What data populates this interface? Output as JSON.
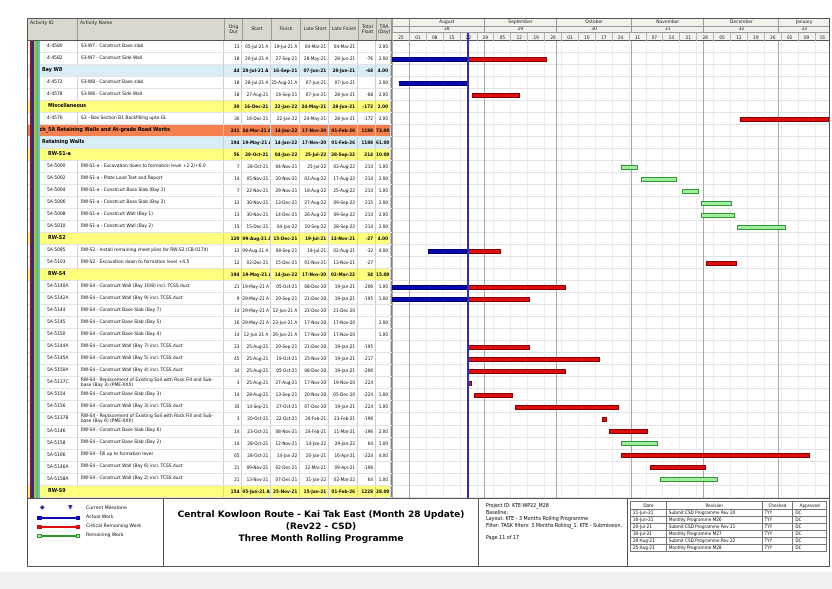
{
  "table": {
    "headers": [
      "Activity ID",
      "Activity Name",
      "Orig Dur",
      "Start",
      "Finish",
      "Late Start",
      "Late Finish",
      "Total Float",
      "TRA (Day)"
    ]
  },
  "chart_data": {
    "type": "gantt",
    "timeline": {
      "range_start": "25-Jul-21",
      "range_end": "22-Jan-22",
      "total_days": 181,
      "data_date": "25-Aug-21",
      "data_date_day": 31,
      "months": [
        {
          "label": "",
          "num": "",
          "d0": 0,
          "d1": 7
        },
        {
          "label": "August",
          "num": "28",
          "d0": 7,
          "d1": 38
        },
        {
          "label": "September",
          "num": "29",
          "d0": 38,
          "d1": 68
        },
        {
          "label": "October",
          "num": "30",
          "d0": 68,
          "d1": 99
        },
        {
          "label": "November",
          "num": "31",
          "d0": 99,
          "d1": 129
        },
        {
          "label": "December",
          "num": "32",
          "d0": 129,
          "d1": 160
        },
        {
          "label": "January",
          "num": "33",
          "d0": 160,
          "d1": 181
        }
      ],
      "week_ticks": [
        "25",
        "01",
        "08",
        "15",
        "22",
        "29",
        "05",
        "12",
        "19",
        "26",
        "03",
        "10",
        "17",
        "24",
        "31",
        "07",
        "14",
        "21",
        "28",
        "05",
        "12",
        "19",
        "26",
        "02",
        "09",
        "16"
      ]
    },
    "tasks": [
      {
        "id": "4-4580",
        "band": null,
        "name": "S3-W7 - Construct Base slab",
        "dur": "13",
        "start": "05-Jul-21 A",
        "finish": "19-Jul-21 A",
        "ls": "04-Mar-21",
        "lf": "04-Mar-21",
        "tf": "",
        "tra": "2.00",
        "segs": []
      },
      {
        "id": "4-4582",
        "band": null,
        "name": "S3-W7 - Construct Side Wall",
        "dur": "18",
        "start": "20-Jul-21 A",
        "finish": "27-Sep-21",
        "ls": "28-May-21",
        "lf": "28-Jun-21",
        "tf": "-76",
        "tra": "2.00",
        "segs": [
          [
            "a",
            0,
            31
          ],
          [
            "c",
            31,
            64
          ]
        ]
      },
      {
        "id": "",
        "band": "cyan",
        "name": "Bay W8",
        "dur": "44",
        "start": "28-Jul-21 A",
        "finish": "16-Sep-21",
        "ls": "07-Jun-21",
        "lf": "28-Jun-21",
        "tf": "-68",
        "tra": "4.00",
        "segs": []
      },
      {
        "id": "4-4572",
        "band": null,
        "name": "S3-W8 - Construct Base slab",
        "dur": "18",
        "start": "28-Jul-21 A",
        "finish": "25-Aug-21 A",
        "ls": "07-Jun-21",
        "lf": "07-Jun-21",
        "tf": "",
        "tra": "2.00",
        "segs": [
          [
            "a",
            3,
            31
          ]
        ]
      },
      {
        "id": "4-4578",
        "band": null,
        "name": "S3-W8 - Construct Side Wall",
        "dur": "18",
        "start": "27-Aug-21",
        "finish": "16-Sep-21",
        "ls": "07-Jun-21",
        "lf": "28-Jun-21",
        "tf": "-68",
        "tra": "2.00",
        "segs": [
          [
            "c",
            33,
            53
          ]
        ]
      },
      {
        "id": "",
        "band": "yellow",
        "name": "Miscellaneous",
        "dur": "30",
        "start": "16-Dec-21",
        "finish": "22-Jan-22",
        "ls": "24-May-21",
        "lf": "28-Jun-21",
        "tf": "-172",
        "tra": "2.00",
        "segs": []
      },
      {
        "id": "4-4576",
        "band": null,
        "name": "S3 - Box Section B1 Backfilling upto GL",
        "dur": "30",
        "start": "16-Dec-21",
        "finish": "22-Jan-22",
        "ls": "24-May-21",
        "lf": "28-Jun-21",
        "tf": "-172",
        "tra": "2.00",
        "segs": [
          [
            "c",
            144,
            181
          ]
        ]
      },
      {
        "id": "",
        "band": "orange",
        "name": "Sch_5A Retaining Walls and At-grade Road Works",
        "dur": "241",
        "start": "24-Mar-21 A",
        "finish": "14-Jan-22",
        "ls": "17-Nov-20",
        "lf": "01-Feb-26",
        "tf": "1188",
        "tra": "73.00",
        "segs": []
      },
      {
        "id": "",
        "band": "cyan",
        "name": "Retaining Walls",
        "dur": "194",
        "start": "19-May-21 A",
        "finish": "14-Jan-22",
        "ls": "17-Nov-20",
        "lf": "01-Feb-26",
        "tf": "1188",
        "tra": "61.00",
        "segs": []
      },
      {
        "id": "",
        "band": "yellow",
        "name": "RW-S1-a",
        "dur": "56",
        "start": "28-Oct-21",
        "finish": "04-Jan-22",
        "ls": "25-Jul-22",
        "lf": "28-Sep-22",
        "tf": "214",
        "tra": "10.00",
        "segs": []
      },
      {
        "id": "5A-5000",
        "band": null,
        "name": "RW-S1-a - Excavation down to formation level +2.2/+6.0",
        "dur": "7",
        "start": "28-Oct-21",
        "finish": "04-Nov-21",
        "ls": "25-Jul-22",
        "lf": "03-Aug-22",
        "tf": "214",
        "tra": "1.00",
        "segs": [
          [
            "r",
            95,
            102
          ]
        ]
      },
      {
        "id": "5A-5002",
        "band": null,
        "name": "RW-S1-a - Plate Load Test and Report",
        "dur": "14",
        "start": "05-Nov-21",
        "finish": "20-Nov-21",
        "ls": "02-Aug-22",
        "lf": "17-Aug-22",
        "tf": "214",
        "tra": "2.00",
        "segs": [
          [
            "r",
            103,
            118
          ]
        ]
      },
      {
        "id": "5A-5004",
        "band": null,
        "name": "RW-S1-a - Construct Base Slab (Bay 1)",
        "dur": "7",
        "start": "22-Nov-21",
        "finish": "29-Nov-21",
        "ls": "18-Aug-22",
        "lf": "25-Aug-22",
        "tf": "214",
        "tra": "1.00",
        "segs": [
          [
            "r",
            120,
            127
          ]
        ]
      },
      {
        "id": "5A-5006",
        "band": null,
        "name": "RW-S1-a - Construct Base Slab (Bay 2)",
        "dur": "12",
        "start": "30-Nov-21",
        "finish": "13-Dec-21",
        "ls": "27-Aug-22",
        "lf": "09-Sep-22",
        "tf": "215",
        "tra": "2.00",
        "segs": [
          [
            "r",
            128,
            141
          ]
        ]
      },
      {
        "id": "5A-5008",
        "band": null,
        "name": "RW-S1-a - Construct Wall (Bay 1)",
        "dur": "13",
        "start": "30-Nov-21",
        "finish": "14-Dec-21",
        "ls": "26-Aug-22",
        "lf": "09-Sep-22",
        "tf": "214",
        "tra": "2.00",
        "segs": [
          [
            "r",
            128,
            142
          ]
        ]
      },
      {
        "id": "5A-5010",
        "band": null,
        "name": "RW-S1-a - Construct Wall (Bay 2)",
        "dur": "15",
        "start": "15-Dec-21",
        "finish": "04-Jan-22",
        "ls": "10-Sep-22",
        "lf": "28-Sep-22",
        "tf": "214",
        "tra": "2.00",
        "segs": [
          [
            "r",
            143,
            163
          ]
        ]
      },
      {
        "id": "",
        "band": "yellow",
        "name": "RW-S2",
        "dur": "120",
        "start": "09-Aug-21 A",
        "finish": "15-Dec-21",
        "ls": "19-Jul-21",
        "lf": "13-Nov-21",
        "tf": "-27",
        "tra": "4.00",
        "segs": []
      },
      {
        "id": "5A-5095",
        "band": null,
        "name": "RW-S2 - Install remaining sheet piles for RW-S2 (CB-0174)",
        "dur": "12",
        "start": "09-Aug-21 A",
        "finish": "08-Sep-21",
        "ls": "19-Jul-21",
        "lf": "02-Aug-21",
        "tf": "-32",
        "tra": "4.00",
        "segs": [
          [
            "a",
            15,
            31
          ],
          [
            "c",
            31,
            45
          ]
        ]
      },
      {
        "id": "5A-5103",
        "band": null,
        "name": "RW-S2 - Excavation down to formation level +4.5",
        "dur": "12",
        "start": "02-Dec-21",
        "finish": "15-Dec-21",
        "ls": "01-Nov-21",
        "lf": "13-Nov-21",
        "tf": "-27",
        "tra": "",
        "segs": [
          [
            "c",
            130,
            143
          ]
        ]
      },
      {
        "id": "",
        "band": "yellow",
        "name": "RW-S4",
        "dur": "194",
        "start": "19-May-21 A",
        "finish": "14-Jan-22",
        "ls": "17-Nov-20",
        "lf": "02-Mar-22",
        "tf": "34",
        "tra": "15.00",
        "segs": []
      },
      {
        "id": "5A-5140A",
        "band": null,
        "name": "RW-S4 - Construct Wall (Bay 10/8) incl. TCSS duct",
        "dur": "21",
        "start": "19-May-21 A",
        "finish": "05-Oct-21",
        "ls": "08-Dec-20",
        "lf": "19-Jan-21",
        "tf": "-206",
        "tra": "1.00",
        "segs": [
          [
            "a",
            0,
            31
          ],
          [
            "c",
            31,
            72
          ]
        ]
      },
      {
        "id": "5A-5142A",
        "band": null,
        "name": "RW-S4 - Construct Wall (Bay 9) incl. TCSS duct",
        "dur": "9",
        "start": "29-May-21 A",
        "finish": "20-Sep-21",
        "ls": "21-Dec-20",
        "lf": "19-Jan-21",
        "tf": "-195",
        "tra": "1.00",
        "segs": [
          [
            "a",
            0,
            31
          ],
          [
            "c",
            31,
            57
          ]
        ]
      },
      {
        "id": "5A-5144",
        "band": null,
        "name": "RW-S4 - Construct Base Slab (Bay 7)",
        "dur": "14",
        "start": "29-May-21 A",
        "finish": "12-Jun-21 A",
        "ls": "21-Dec-20",
        "lf": "21-Dec-20",
        "tf": "",
        "tra": "",
        "segs": []
      },
      {
        "id": "5A-5145",
        "band": null,
        "name": "RW-S4 - Construct Base Slab (Bay 5)",
        "dur": "16",
        "start": "29-May-21 A",
        "finish": "23-Jun-21 A",
        "ls": "17-Nov-20",
        "lf": "17-Nov-20",
        "tf": "",
        "tra": "2.00",
        "segs": []
      },
      {
        "id": "5A-5150",
        "band": null,
        "name": "RW-S4 - Construct Base Slab (Bay 4)",
        "dur": "14",
        "start": "12-Jun-21 A",
        "finish": "26-Jun-21 A",
        "ls": "17-Nov-20",
        "lf": "17-Nov-20",
        "tf": "",
        "tra": "1.00",
        "segs": []
      },
      {
        "id": "5A-5144A",
        "band": null,
        "name": "RW-S4 - Construct Wall (Bay 7) incl. TCSS duct",
        "dur": "23",
        "start": "25-Aug-21",
        "finish": "20-Sep-21",
        "ls": "21-Dec-20",
        "lf": "19-Jan-21",
        "tf": "-195",
        "tra": "",
        "segs": [
          [
            "c",
            31,
            57
          ]
        ]
      },
      {
        "id": "5A-5145A",
        "band": null,
        "name": "RW-S4 - Construct Wall (Bay 5) incl. TCSS duct",
        "dur": "45",
        "start": "25-Aug-21",
        "finish": "19-Oct-21",
        "ls": "25-Nov-20",
        "lf": "19-Jan-21",
        "tf": "-217",
        "tra": "",
        "segs": [
          [
            "c",
            31,
            86
          ]
        ]
      },
      {
        "id": "5A-5150A",
        "band": null,
        "name": "RW-S4 - Construct Wall (Bay 4) incl. TCSS duct",
        "dur": "34",
        "start": "25-Aug-21",
        "finish": "05-Oct-21",
        "ls": "08-Dec-20",
        "lf": "19-Jan-21",
        "tf": "-206",
        "tra": "",
        "segs": [
          [
            "c",
            31,
            72
          ]
        ]
      },
      {
        "id": "5A-5137C",
        "band": null,
        "name": "RW-S4 - Replacement of Existing Soil with Rock Fill and Sub-base (Bay 3) (PME-XXX)",
        "dur": "3",
        "start": "25-Aug-21",
        "finish": "27-Aug-21",
        "ls": "17-Nov-20",
        "lf": "19-Nov-20",
        "tf": "-224",
        "tra": "",
        "segs": [
          [
            "c",
            31,
            33
          ]
        ]
      },
      {
        "id": "5A-5154",
        "band": null,
        "name": "RW-S4 - Construct Base Slab (Bay 3)",
        "dur": "14",
        "start": "28-Aug-21",
        "finish": "13-Sep-21",
        "ls": "20-Nov-20",
        "lf": "05-Dec-20",
        "tf": "-224",
        "tra": "1.00",
        "segs": [
          [
            "c",
            34,
            50
          ]
        ]
      },
      {
        "id": "5A-5156",
        "band": null,
        "name": "RW-S4 - Construct Wall (Bay 3) incl. TCSS duct",
        "dur": "35",
        "start": "14-Sep-21",
        "finish": "27-Oct-21",
        "ls": "07-Dec-20",
        "lf": "19-Jan-21",
        "tf": "-224",
        "tra": "1.00",
        "segs": [
          [
            "c",
            51,
            94
          ]
        ]
      },
      {
        "id": "5A-5137B",
        "band": null,
        "name": "RW-S4 - Replacement of Existing Soil with Rock Fill and Sub-base (Bay 6) (PME-XXX)",
        "dur": "3",
        "start": "20-Oct-21",
        "finish": "22-Oct-21",
        "ls": "20-Feb-21",
        "lf": "23-Feb-21",
        "tf": "-196",
        "tra": "",
        "segs": [
          [
            "c",
            87,
            89
          ]
        ]
      },
      {
        "id": "5A-5146",
        "band": null,
        "name": "RW-S4 - Construct Base Slab (Bay 6)",
        "dur": "14",
        "start": "23-Oct-21",
        "finish": "08-Nov-21",
        "ls": "24-Feb-21",
        "lf": "11-Mar-21",
        "tf": "-196",
        "tra": "2.00",
        "segs": [
          [
            "c",
            90,
            106
          ]
        ]
      },
      {
        "id": "5A-5158",
        "band": null,
        "name": "RW-S4 - Construct Base Slab (Bay 2)",
        "dur": "14",
        "start": "28-Oct-21",
        "finish": "12-Nov-21",
        "ls": "14-Jan-22",
        "lf": "29-Jan-22",
        "tf": "64",
        "tra": "1.00",
        "segs": [
          [
            "r",
            95,
            110
          ]
        ]
      },
      {
        "id": "5A-5166",
        "band": null,
        "name": "RW-S4 - Fill up to formation level",
        "dur": "65",
        "start": "28-Oct-21",
        "finish": "14-Jan-22",
        "ls": "20-Jan-21",
        "lf": "16-Apr-21",
        "tf": "-224",
        "tra": "4.00",
        "segs": [
          [
            "c",
            95,
            173
          ]
        ]
      },
      {
        "id": "5A-5146A",
        "band": null,
        "name": "RW-S4 - Construct Wall (Bay 6) incl. TCSS duct",
        "dur": "21",
        "start": "09-Nov-21",
        "finish": "02-Dec-21",
        "ls": "12-Mar-21",
        "lf": "09-Apr-21",
        "tf": "-196",
        "tra": "",
        "segs": [
          [
            "c",
            107,
            130
          ]
        ]
      },
      {
        "id": "5A-5158A",
        "band": null,
        "name": "RW-S4 - Construct Wall (Bay 2) incl. TCSS duct",
        "dur": "21",
        "start": "13-Nov-21",
        "finish": "07-Dec-21",
        "ls": "31-Jan-22",
        "lf": "02-Mar-22",
        "tf": "64",
        "tra": "1.00",
        "segs": [
          [
            "r",
            111,
            135
          ]
        ]
      },
      {
        "id": "",
        "band": "yellow",
        "name": "RW-S9",
        "dur": "154",
        "start": "05-Jun-21 A",
        "finish": "25-Nov-21",
        "ls": "15-Jan-21",
        "lf": "01-Feb-26",
        "tf": "1228",
        "tra": "28.00",
        "segs": []
      }
    ]
  },
  "legend": {
    "items": [
      {
        "label": "Current Milestone",
        "type": "milestone"
      },
      {
        "label": "Actual Work",
        "type": "actual"
      },
      {
        "label": "Critical Remaining Work",
        "type": "critical"
      },
      {
        "label": "Remaining Work",
        "type": "remaining"
      }
    ]
  },
  "footer": {
    "title_line1": "Central Kowloon Route - Kai Tak East (Month 28 Update) (Rev22 - CSD)",
    "title_line2": "Three Month Rolling Programme",
    "info": [
      "Project ID: KTE-WP22_M28",
      "Baseline:",
      "Layout: KTE - 3 Months Rolling Programme",
      "Filter: TASK filters: 3 Months Rolling_1. KTE - Submission."
    ],
    "page": "Page 11 of 17",
    "revision": {
      "headers": [
        "Date",
        "Revision",
        "Checked",
        "Approved"
      ],
      "rows": [
        [
          "21-Jun-21",
          "Submit CSD Programme Rev 20",
          "TYY",
          "DC"
        ],
        [
          "30-Jun-21",
          "Monthly Programme M26",
          "TYY",
          "DC"
        ],
        [
          "20-Jul-21",
          "Submit CSD Programme Rev 21",
          "TYY",
          "DC"
        ],
        [
          "30-Jul-21",
          "Monthly Programme M27",
          "TYY",
          "DC"
        ],
        [
          "20-Aug-21",
          "Submit CSD Programme Rev 22",
          "TYY",
          "DC"
        ],
        [
          "25-Aug-21",
          "Monthly Programme M28",
          "TYY",
          "DC"
        ]
      ]
    }
  },
  "colors": {
    "actual_work": "#0a0ab4",
    "critical_remaining": "#dc0f0f",
    "remaining_fill": "#a0eda0",
    "remaining_border": "#2b9a2b",
    "data_date_line": "#2e2eb8",
    "band_cyan": "#d8eef4",
    "band_yellow": "#ffff7e",
    "band_orange": "#f4814f"
  }
}
